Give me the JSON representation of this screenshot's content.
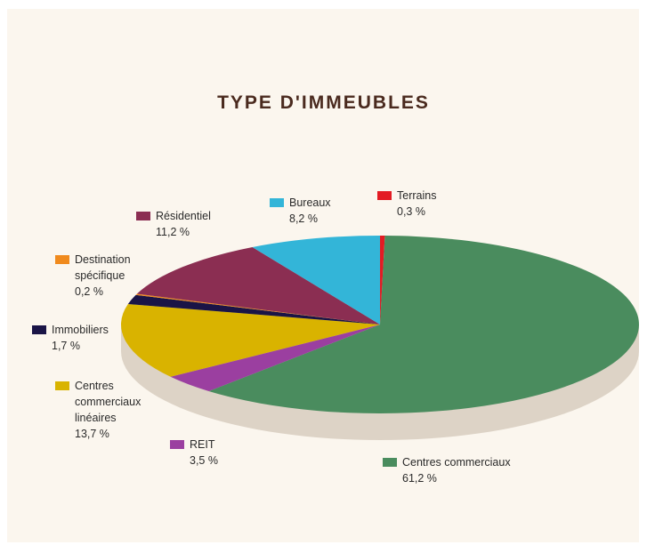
{
  "chart_data": {
    "type": "pie",
    "title": "TYPE D'IMMEUBLES",
    "categories": [
      "Terrains",
      "Centres commerciaux",
      "REIT",
      "Centres commerciaux linéaires",
      "Immobiliers",
      "Destination spécifique",
      "Résidentiel",
      "Bureaux"
    ],
    "values": [
      0.3,
      61.2,
      3.5,
      13.7,
      1.7,
      0.2,
      11.2,
      8.2
    ],
    "value_labels": [
      "0,3 %",
      "61,2 %",
      "3,5 %",
      "13,7 %",
      "1,7 %",
      "0,2 %",
      "11,2 %",
      "8,2 %"
    ],
    "colors": [
      "#e31b23",
      "#4a8c5e",
      "#9b3fa0",
      "#d9b300",
      "#1a1446",
      "#f08a1d",
      "#8b2e52",
      "#33b5d8"
    ]
  }
}
